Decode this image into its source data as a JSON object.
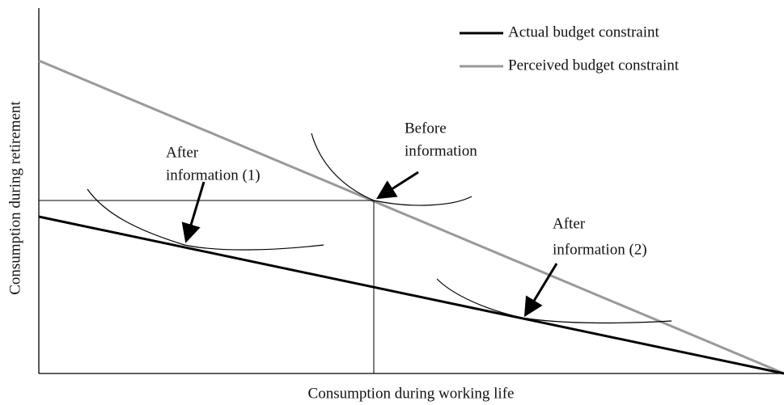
{
  "legend": [
    "Actual budget constraint",
    "Perceived budget constraint"
  ],
  "axes": {
    "x_label": "Consumption during working life",
    "y_label": "Consumption during retirement"
  },
  "annotations": [
    {
      "lines": [
        "After",
        "information (1)"
      ]
    },
    {
      "lines": [
        "Before",
        "information"
      ]
    },
    {
      "lines": [
        "After",
        "information (2)"
      ]
    }
  ]
}
